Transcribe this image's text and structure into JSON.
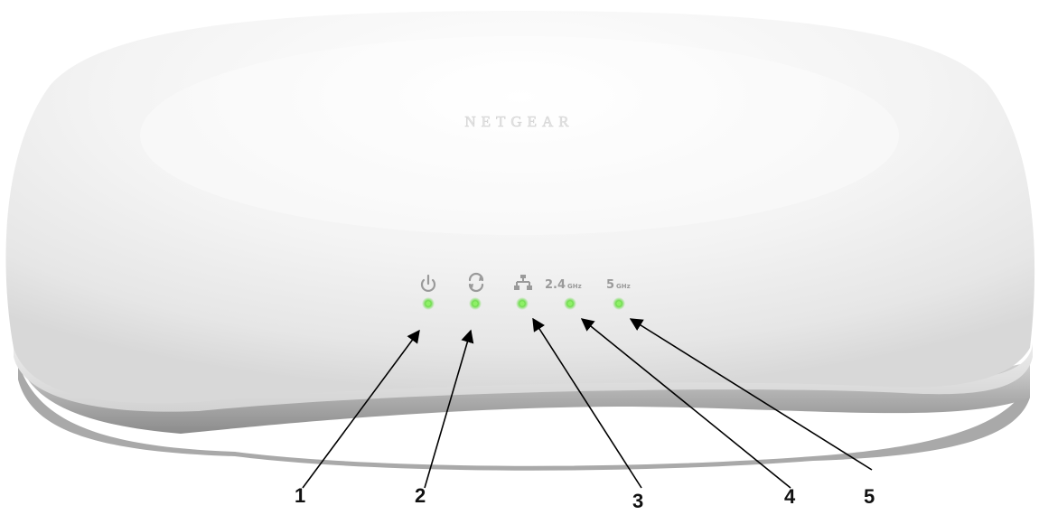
{
  "device": {
    "brand": "NETGEAR"
  },
  "indicators": [
    {
      "id": "power",
      "icon": "power-icon",
      "led_color": "#6ddc4a"
    },
    {
      "id": "cloud",
      "icon": "cloud-icon",
      "led_color": "#6ddc4a"
    },
    {
      "id": "lan",
      "icon": "lan-icon",
      "led_color": "#6ddc4a"
    },
    {
      "id": "wifi-2.4",
      "band_value": "2.4",
      "band_unit": "GHz",
      "led_color": "#6ddc4a"
    },
    {
      "id": "wifi-5",
      "band_value": "5",
      "band_unit": "GHz",
      "led_color": "#6ddc4a"
    }
  ],
  "callouts": [
    {
      "number": "1"
    },
    {
      "number": "2"
    },
    {
      "number": "3"
    },
    {
      "number": "4"
    },
    {
      "number": "5"
    }
  ],
  "colors": {
    "shell_white": "#f4f4f4",
    "base_gray": "#9a9a9a",
    "icon_gray": "#9a9a9a",
    "arrow_black": "#000000"
  }
}
